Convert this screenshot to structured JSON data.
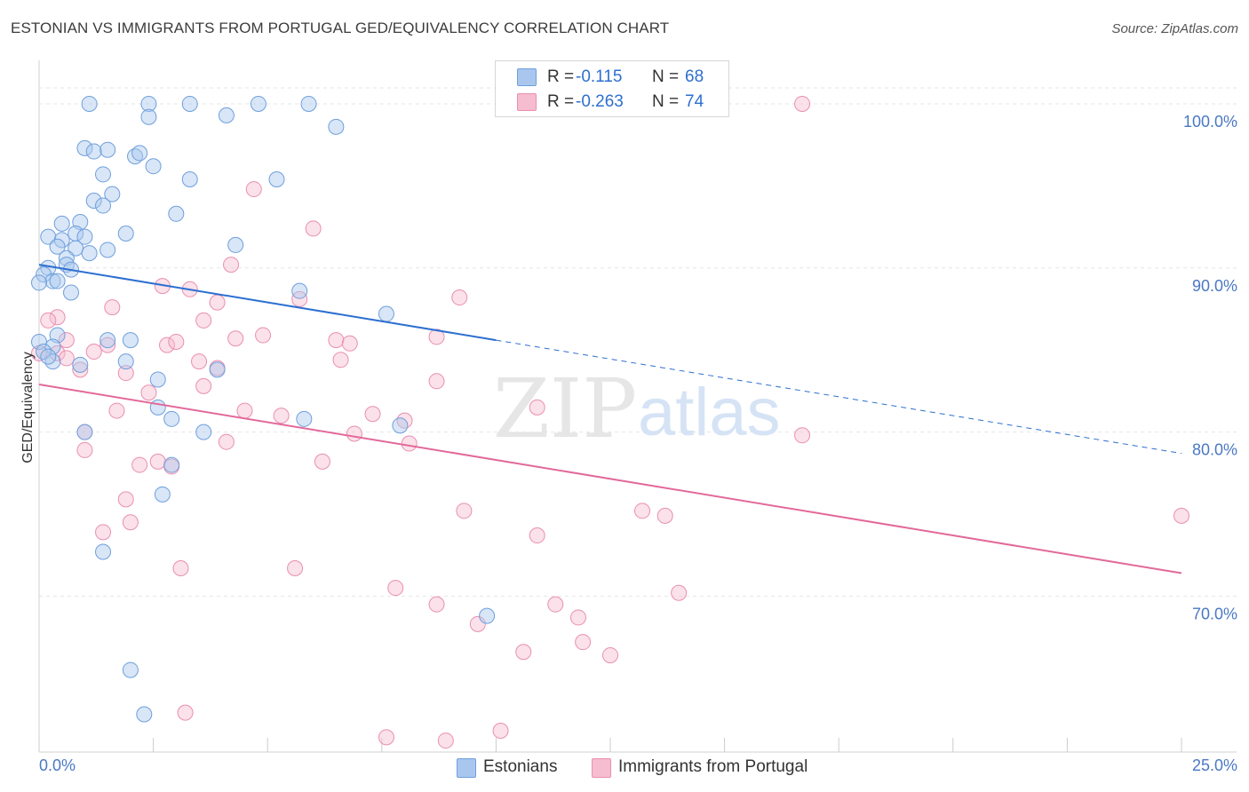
{
  "title": "ESTONIAN VS IMMIGRANTS FROM PORTUGAL GED/EQUIVALENCY CORRELATION CHART",
  "source": "Source: ZipAtlas.com",
  "watermark": {
    "part1": "ZIP",
    "part2": "atlas"
  },
  "colors": {
    "blue_fill": "#a9c7ee",
    "blue_stroke": "#6f9fdc",
    "blue_line": "#2d6fd0",
    "pink_fill": "#f6bcd0",
    "pink_stroke": "#e98fb0",
    "pink_line": "#e2699a",
    "grid": "#e6e6e6",
    "tick_text": "#4a78c4"
  },
  "legend": {
    "rows": [
      {
        "r_label": "R =",
        "r_value": "-0.115",
        "n_label": "N =",
        "n_value": "68"
      },
      {
        "r_label": "R =",
        "r_value": "-0.263",
        "n_label": "N =",
        "n_value": "74"
      }
    ]
  },
  "bottom_legend": {
    "series1": "Estonians",
    "series2": "Immigrants from Portugal"
  },
  "chart_data": {
    "type": "scatter",
    "title": "ESTONIAN VS IMMIGRANTS FROM PORTUGAL GED/EQUIVALENCY CORRELATION CHART",
    "ylabel": "GED/Equivalency",
    "xlim": [
      0,
      25
    ],
    "ylim": [
      60.5,
      102
    ],
    "x_tick_labels": [
      "0.0%",
      "25.0%"
    ],
    "y_ticks": [
      70,
      80,
      90,
      100
    ],
    "y_tick_labels": [
      "70.0%",
      "80.0%",
      "90.0%",
      "100.0%"
    ],
    "grid": true,
    "legend_position": "top-center",
    "series": [
      {
        "name": "Estonians",
        "color": "#a9c7ee",
        "trend": {
          "x": [
            0,
            10
          ],
          "y": [
            90.2,
            85.6
          ],
          "dashed_extension_to_x": 25,
          "dashed_end_y": 78.7
        },
        "points": [
          [
            1.1,
            100
          ],
          [
            2.4,
            100
          ],
          [
            3.3,
            100
          ],
          [
            4.8,
            100
          ],
          [
            5.9,
            100
          ],
          [
            2.4,
            99.2
          ],
          [
            4.1,
            99.3
          ],
          [
            6.5,
            98.6
          ],
          [
            1.0,
            97.3
          ],
          [
            1.2,
            97.1
          ],
          [
            1.5,
            97.2
          ],
          [
            2.1,
            96.8
          ],
          [
            2.2,
            97.0
          ],
          [
            2.5,
            96.2
          ],
          [
            1.4,
            95.7
          ],
          [
            3.3,
            95.4
          ],
          [
            5.2,
            95.4
          ],
          [
            1.6,
            94.5
          ],
          [
            1.2,
            94.1
          ],
          [
            1.4,
            93.8
          ],
          [
            3.0,
            93.3
          ],
          [
            0.5,
            92.7
          ],
          [
            0.9,
            92.8
          ],
          [
            1.9,
            92.1
          ],
          [
            0.2,
            91.9
          ],
          [
            0.8,
            92.1
          ],
          [
            0.5,
            91.7
          ],
          [
            0.4,
            91.3
          ],
          [
            1.0,
            91.9
          ],
          [
            0.8,
            91.2
          ],
          [
            4.3,
            91.4
          ],
          [
            1.5,
            91.1
          ],
          [
            0.6,
            90.6
          ],
          [
            1.1,
            90.9
          ],
          [
            0.6,
            90.2
          ],
          [
            0.2,
            90.0
          ],
          [
            0.1,
            89.6
          ],
          [
            0.7,
            89.9
          ],
          [
            0.3,
            89.2
          ],
          [
            0.0,
            89.1
          ],
          [
            0.4,
            89.2
          ],
          [
            0.7,
            88.5
          ],
          [
            5.7,
            88.6
          ],
          [
            7.6,
            87.2
          ],
          [
            0.4,
            85.9
          ],
          [
            2.0,
            85.6
          ],
          [
            1.5,
            85.6
          ],
          [
            0.3,
            85.2
          ],
          [
            1.9,
            84.3
          ],
          [
            0.9,
            84.1
          ],
          [
            3.9,
            83.8
          ],
          [
            2.6,
            83.2
          ],
          [
            2.6,
            81.5
          ],
          [
            2.9,
            80.8
          ],
          [
            5.8,
            80.8
          ],
          [
            7.9,
            80.4
          ],
          [
            1.0,
            80.0
          ],
          [
            3.6,
            80.0
          ],
          [
            2.9,
            78.0
          ],
          [
            2.7,
            76.2
          ],
          [
            1.4,
            72.7
          ],
          [
            9.8,
            68.8
          ],
          [
            2.0,
            65.5
          ],
          [
            2.3,
            62.8
          ],
          [
            0.0,
            85.5
          ],
          [
            0.1,
            84.9
          ],
          [
            0.3,
            84.3
          ],
          [
            0.2,
            84.6
          ]
        ]
      },
      {
        "name": "Immigrants from Portugal",
        "color": "#f6bcd0",
        "trend": {
          "x": [
            0,
            25
          ],
          "y": [
            82.9,
            71.4
          ]
        },
        "points": [
          [
            13.9,
            100
          ],
          [
            16.7,
            100
          ],
          [
            4.7,
            94.8
          ],
          [
            6.0,
            92.4
          ],
          [
            4.2,
            90.2
          ],
          [
            2.7,
            88.9
          ],
          [
            3.3,
            88.7
          ],
          [
            9.2,
            88.2
          ],
          [
            5.7,
            88.1
          ],
          [
            3.9,
            87.9
          ],
          [
            1.6,
            87.6
          ],
          [
            0.4,
            87.0
          ],
          [
            0.2,
            86.8
          ],
          [
            3.6,
            86.8
          ],
          [
            8.7,
            85.8
          ],
          [
            4.3,
            85.7
          ],
          [
            4.9,
            85.9
          ],
          [
            0.6,
            85.6
          ],
          [
            2.8,
            85.3
          ],
          [
            3.0,
            85.5
          ],
          [
            6.5,
            85.6
          ],
          [
            6.8,
            85.4
          ],
          [
            1.5,
            85.3
          ],
          [
            1.2,
            84.9
          ],
          [
            0.4,
            84.8
          ],
          [
            0.0,
            84.8
          ],
          [
            0.6,
            84.5
          ],
          [
            3.5,
            84.3
          ],
          [
            6.6,
            84.4
          ],
          [
            0.9,
            83.8
          ],
          [
            1.9,
            83.6
          ],
          [
            3.9,
            83.9
          ],
          [
            8.7,
            83.1
          ],
          [
            3.6,
            82.8
          ],
          [
            2.4,
            82.4
          ],
          [
            10.9,
            81.5
          ],
          [
            1.7,
            81.3
          ],
          [
            4.5,
            81.3
          ],
          [
            5.3,
            81.0
          ],
          [
            7.3,
            81.1
          ],
          [
            8.0,
            80.7
          ],
          [
            1.0,
            80.0
          ],
          [
            6.9,
            79.9
          ],
          [
            16.7,
            79.8
          ],
          [
            4.1,
            79.4
          ],
          [
            8.1,
            79.3
          ],
          [
            1.0,
            78.9
          ],
          [
            2.2,
            78.0
          ],
          [
            2.6,
            78.2
          ],
          [
            6.2,
            78.2
          ],
          [
            2.9,
            77.9
          ],
          [
            1.9,
            75.9
          ],
          [
            9.3,
            75.2
          ],
          [
            13.2,
            75.2
          ],
          [
            13.7,
            74.9
          ],
          [
            25.0,
            74.9
          ],
          [
            2.0,
            74.5
          ],
          [
            1.4,
            73.9
          ],
          [
            10.9,
            73.7
          ],
          [
            3.1,
            71.7
          ],
          [
            5.6,
            71.7
          ],
          [
            7.8,
            70.5
          ],
          [
            14.0,
            70.2
          ],
          [
            8.7,
            69.5
          ],
          [
            11.3,
            69.5
          ],
          [
            11.8,
            68.7
          ],
          [
            9.6,
            68.3
          ],
          [
            11.9,
            67.2
          ],
          [
            10.6,
            66.6
          ],
          [
            12.5,
            66.4
          ],
          [
            3.2,
            62.9
          ],
          [
            7.6,
            61.4
          ],
          [
            8.9,
            61.2
          ],
          [
            10.1,
            61.8
          ]
        ]
      }
    ]
  }
}
